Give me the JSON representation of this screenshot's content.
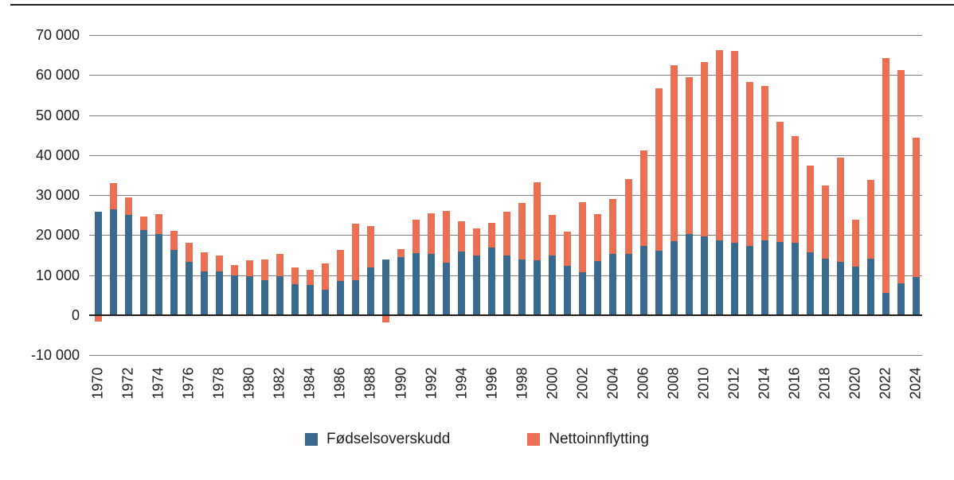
{
  "figure": {
    "background": "#ffffff",
    "top_rule_color": "#231f20",
    "gridline_color": "#7d7d7d",
    "axis_line_color": "#231f20",
    "text_color": "#1c1c1c"
  },
  "chart_data": {
    "type": "bar",
    "stacked": true,
    "title": "",
    "xlabel": "",
    "ylabel": "",
    "grid": "horizontal",
    "legend_position": "bottom-center",
    "ylim": [
      -10000,
      70000
    ],
    "ytick_step": 10000,
    "yticks": [
      {
        "value": 70000,
        "label": "70 000"
      },
      {
        "value": 60000,
        "label": "60 000"
      },
      {
        "value": 50000,
        "label": "50 000"
      },
      {
        "value": 40000,
        "label": "40 000"
      },
      {
        "value": 30000,
        "label": "30 000"
      },
      {
        "value": 20000,
        "label": "20 000"
      },
      {
        "value": 10000,
        "label": "10 000"
      },
      {
        "value": 0,
        "label": "0"
      },
      {
        "value": -10000,
        "label": "-10 000"
      }
    ],
    "xtick_every": 2,
    "categories": [
      1970,
      1971,
      1972,
      1973,
      1974,
      1975,
      1976,
      1977,
      1978,
      1979,
      1980,
      1981,
      1982,
      1983,
      1984,
      1985,
      1986,
      1987,
      1988,
      1989,
      1990,
      1991,
      1992,
      1993,
      1994,
      1995,
      1996,
      1997,
      1998,
      1999,
      2000,
      2001,
      2002,
      2003,
      2004,
      2005,
      2006,
      2007,
      2008,
      2009,
      2010,
      2011,
      2012,
      2013,
      2014,
      2015,
      2016,
      2017,
      2018,
      2019,
      2020,
      2021,
      2022,
      2023,
      2024
    ],
    "series": [
      {
        "name": "Fødselsoverskudd",
        "color": "#3A6B8E",
        "values": [
          25800,
          26500,
          25100,
          21300,
          20200,
          16300,
          13400,
          11000,
          11000,
          10000,
          9700,
          8800,
          9800,
          7700,
          7500,
          6300,
          8600,
          8700,
          11900,
          14000,
          14600,
          15600,
          15300,
          13100,
          15900,
          15000,
          17000,
          15000,
          14000,
          13800,
          15000,
          12400,
          10700,
          13600,
          15400,
          15300,
          17300,
          16200,
          18400,
          20300,
          19700,
          18700,
          18000,
          17400,
          18600,
          18200,
          18100,
          15800,
          14100,
          13300,
          12200,
          14100,
          5500,
          8000,
          9500
        ]
      },
      {
        "name": "Nettoinnflytting",
        "color": "#EB7053",
        "values": [
          -1500,
          6600,
          4400,
          3300,
          5000,
          4800,
          4700,
          4800,
          3900,
          2600,
          4100,
          5200,
          5600,
          4300,
          3900,
          6600,
          7800,
          14200,
          10400,
          -1800,
          2000,
          8300,
          10100,
          12900,
          7600,
          6600,
          6000,
          10900,
          14000,
          19400,
          10000,
          8400,
          17500,
          11600,
          13600,
          18800,
          23900,
          40400,
          44100,
          39200,
          43500,
          47600,
          48100,
          40800,
          38700,
          30200,
          26600,
          21500,
          18300,
          26000,
          11600,
          19800,
          58800,
          53300,
          34800
        ]
      }
    ]
  }
}
